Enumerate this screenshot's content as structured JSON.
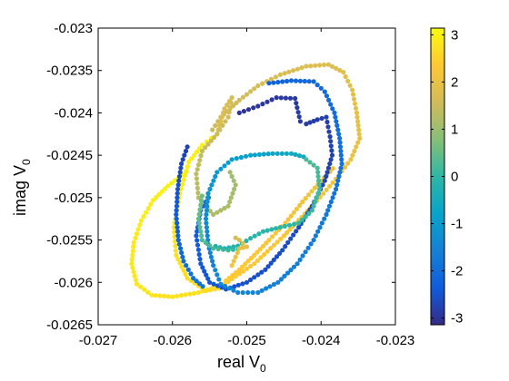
{
  "chart_data": {
    "type": "scatter",
    "xlabel": "real V",
    "xlabel_sub": "0",
    "ylabel": "imag V",
    "ylabel_sub": "0",
    "xlim": [
      -0.027,
      -0.023
    ],
    "ylim": [
      -0.0265,
      -0.023
    ],
    "xticks": [
      "-0.027",
      "-0.026",
      "-0.025",
      "-0.024",
      "-0.023"
    ],
    "yticks": [
      "-0.023",
      "-0.0235",
      "-0.024",
      "-0.0245",
      "-0.025",
      "-0.0255",
      "-0.026",
      "-0.0265"
    ],
    "grid": false,
    "colorbar": {
      "range": [
        -3.1416,
        3.1416
      ],
      "ticks": [
        "3",
        "2",
        "1",
        "0",
        "-1",
        "-2",
        "-3"
      ],
      "tick_values": [
        3,
        2,
        1,
        0,
        -1,
        -2,
        -3
      ],
      "colormap": "parula"
    },
    "segments": [
      {
        "c0": 3.0,
        "c1": 2.7,
        "points": [
          [
            -0.02582,
            -0.0247
          ],
          [
            -0.02606,
            -0.02486
          ],
          [
            -0.02626,
            -0.02503
          ],
          [
            -0.02642,
            -0.02527
          ],
          [
            -0.02652,
            -0.02553
          ],
          [
            -0.02655,
            -0.02578
          ],
          [
            -0.02648,
            -0.02602
          ],
          [
            -0.02628,
            -0.02615
          ],
          [
            -0.026,
            -0.02617
          ],
          [
            -0.02565,
            -0.02612
          ],
          [
            -0.0253,
            -0.02602
          ]
        ]
      },
      {
        "c0": 3.0,
        "c1": 2.6,
        "points": [
          [
            -0.02548,
            -0.0243
          ],
          [
            -0.0256,
            -0.02438
          ],
          [
            -0.02578,
            -0.02458
          ],
          [
            -0.0259,
            -0.02495
          ],
          [
            -0.02598,
            -0.02535
          ],
          [
            -0.02595,
            -0.02568
          ],
          [
            -0.0258,
            -0.02595
          ],
          [
            -0.02555,
            -0.0261
          ],
          [
            -0.02525,
            -0.02605
          ]
        ]
      },
      {
        "c0": 2.4,
        "c1": 1.5,
        "points": [
          [
            -0.0253,
            -0.02602
          ],
          [
            -0.0249,
            -0.02578
          ],
          [
            -0.0245,
            -0.02545
          ],
          [
            -0.0241,
            -0.02508
          ],
          [
            -0.0238,
            -0.02478
          ],
          [
            -0.0236,
            -0.02455
          ],
          [
            -0.02348,
            -0.0243
          ],
          [
            -0.02352,
            -0.024
          ],
          [
            -0.02358,
            -0.02373
          ],
          [
            -0.0237,
            -0.02352
          ],
          [
            -0.0239,
            -0.02343
          ],
          [
            -0.0242,
            -0.02345
          ],
          [
            -0.02455,
            -0.02355
          ],
          [
            -0.02485,
            -0.02368
          ],
          [
            -0.0251,
            -0.02385
          ],
          [
            -0.02535,
            -0.02405
          ],
          [
            -0.0255,
            -0.02425
          ]
        ]
      },
      {
        "c0": 1.8,
        "c1": 1.0,
        "points": [
          [
            -0.0254,
            -0.02425
          ],
          [
            -0.0253,
            -0.02395
          ],
          [
            -0.0252,
            -0.02382
          ],
          [
            -0.02525,
            -0.02405
          ],
          [
            -0.0254,
            -0.02425
          ],
          [
            -0.0256,
            -0.02445
          ],
          [
            -0.02568,
            -0.02472
          ],
          [
            -0.02565,
            -0.025
          ],
          [
            -0.02545,
            -0.0252
          ],
          [
            -0.02525,
            -0.0251
          ],
          [
            -0.02515,
            -0.02485
          ],
          [
            -0.02525,
            -0.02465
          ]
        ]
      },
      {
        "c0": 2.4,
        "c1": 2.0,
        "points": [
          [
            -0.02528,
            -0.02598
          ],
          [
            -0.0251,
            -0.02585
          ],
          [
            -0.0249,
            -0.02568
          ],
          [
            -0.0247,
            -0.0255
          ],
          [
            -0.02448,
            -0.0253
          ],
          [
            -0.02425,
            -0.02505
          ],
          [
            -0.024,
            -0.0248
          ],
          [
            -0.0238,
            -0.02462
          ]
        ]
      },
      {
        "c0": -3.0,
        "c1": -2.3,
        "points": [
          [
            -0.0251,
            -0.024
          ],
          [
            -0.02485,
            -0.02392
          ],
          [
            -0.0246,
            -0.02382
          ],
          [
            -0.02435,
            -0.02383
          ],
          [
            -0.02428,
            -0.0241
          ],
          [
            -0.0242,
            -0.02413
          ],
          [
            -0.02405,
            -0.02408
          ],
          [
            -0.02393,
            -0.02405
          ],
          [
            -0.02388,
            -0.02428
          ],
          [
            -0.02385,
            -0.0245
          ],
          [
            -0.02395,
            -0.0248
          ],
          [
            -0.02412,
            -0.0251
          ],
          [
            -0.0243,
            -0.02535
          ],
          [
            -0.02452,
            -0.02562
          ],
          [
            -0.02475,
            -0.02585
          ],
          [
            -0.025,
            -0.026
          ],
          [
            -0.02528,
            -0.02608
          ],
          [
            -0.0255,
            -0.026
          ],
          [
            -0.02562,
            -0.02578
          ],
          [
            -0.02568,
            -0.02545
          ],
          [
            -0.02562,
            -0.02515
          ],
          [
            -0.02548,
            -0.02495
          ]
        ]
      },
      {
        "c0": -2.2,
        "c1": -1.4,
        "points": [
          [
            -0.0247,
            -0.02365
          ],
          [
            -0.0244,
            -0.02362
          ],
          [
            -0.0241,
            -0.02363
          ],
          [
            -0.02395,
            -0.02375
          ],
          [
            -0.02382,
            -0.024
          ],
          [
            -0.02375,
            -0.0243
          ],
          [
            -0.02372,
            -0.0246
          ],
          [
            -0.0238,
            -0.0249
          ],
          [
            -0.02393,
            -0.0252
          ],
          [
            -0.0241,
            -0.0255
          ],
          [
            -0.02432,
            -0.02578
          ],
          [
            -0.02458,
            -0.026
          ],
          [
            -0.02485,
            -0.02612
          ],
          [
            -0.02512,
            -0.02612
          ],
          [
            -0.02535,
            -0.02602
          ],
          [
            -0.02545,
            -0.0258
          ]
        ]
      },
      {
        "c0": -1.6,
        "c1": -0.5,
        "points": [
          [
            -0.02545,
            -0.0258
          ],
          [
            -0.02552,
            -0.02555
          ],
          [
            -0.02555,
            -0.02525
          ],
          [
            -0.02552,
            -0.02495
          ],
          [
            -0.0254,
            -0.0247
          ],
          [
            -0.0252,
            -0.02455
          ],
          [
            -0.02495,
            -0.0245
          ],
          [
            -0.02465,
            -0.02448
          ],
          [
            -0.0244,
            -0.02448
          ],
          [
            -0.02418,
            -0.02453
          ]
        ]
      },
      {
        "c0": 0.3,
        "c1": -0.3,
        "points": [
          [
            -0.0242,
            -0.02455
          ],
          [
            -0.02405,
            -0.02465
          ],
          [
            -0.02402,
            -0.0249
          ],
          [
            -0.02412,
            -0.02515
          ],
          [
            -0.0243,
            -0.0253
          ],
          [
            -0.02455,
            -0.02535
          ],
          [
            -0.02478,
            -0.0254
          ],
          [
            -0.02495,
            -0.02548
          ],
          [
            -0.02512,
            -0.02557
          ],
          [
            -0.0253,
            -0.0256
          ],
          [
            -0.02548,
            -0.02556
          ]
        ]
      },
      {
        "c0": 0.6,
        "c1": 0.0,
        "points": [
          [
            -0.0256,
            -0.02498
          ],
          [
            -0.02565,
            -0.02525
          ],
          [
            -0.0256,
            -0.0255
          ],
          [
            -0.02545,
            -0.0256
          ],
          [
            -0.02525,
            -0.02562
          ],
          [
            -0.02505,
            -0.0256
          ]
        ]
      },
      {
        "c0": 2.2,
        "c1": 1.6,
        "points": [
          [
            -0.0252,
            -0.0258
          ],
          [
            -0.02515,
            -0.0257
          ],
          [
            -0.0251,
            -0.0256
          ],
          [
            -0.025,
            -0.02558
          ],
          [
            -0.0251,
            -0.0255
          ],
          [
            -0.0252,
            -0.02545
          ]
        ]
      },
      {
        "c0": -2.8,
        "c1": -1.8,
        "points": [
          [
            -0.0258,
            -0.0244
          ],
          [
            -0.02588,
            -0.0246
          ],
          [
            -0.02593,
            -0.0249
          ],
          [
            -0.02595,
            -0.0252
          ],
          [
            -0.02592,
            -0.0255
          ],
          [
            -0.02585,
            -0.02575
          ],
          [
            -0.02572,
            -0.02595
          ],
          [
            -0.02555,
            -0.02608
          ]
        ]
      }
    ]
  }
}
